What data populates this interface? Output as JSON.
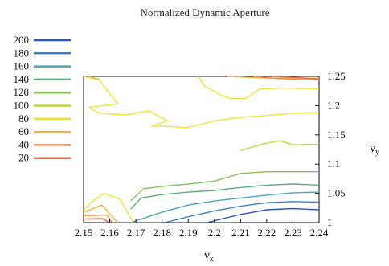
{
  "chart_data": {
    "type": "contour",
    "title": "Normalized Dynamic Aperture",
    "xlabel": "ν",
    "xlabel_sub": "x",
    "ylabel": "ν",
    "ylabel_sub": "y",
    "xlim": [
      2.15,
      2.24
    ],
    "ylim": [
      1.0,
      1.25
    ],
    "x_ticks": [
      "2.15",
      "2.16",
      "2.17",
      "2.18",
      "2.19",
      "2.2",
      "2.21",
      "2.22",
      "2.23",
      "2.24"
    ],
    "y_ticks": [
      "1",
      "1.05",
      "1.1",
      "1.15",
      "1.2",
      "1.25"
    ],
    "grid": false,
    "y_axis_side": "right",
    "legend_position": "top-left",
    "levels": [
      {
        "value": 200,
        "label": "200",
        "color": "#2c55c9"
      },
      {
        "value": 180,
        "label": "180",
        "color": "#3b82c4"
      },
      {
        "value": 160,
        "label": "160",
        "color": "#4aa6b7"
      },
      {
        "value": 140,
        "label": "140",
        "color": "#58b07c"
      },
      {
        "value": 120,
        "label": "120",
        "color": "#86c25a"
      },
      {
        "value": 100,
        "label": "100",
        "color": "#c4d43a"
      },
      {
        "value": 80,
        "label": "80",
        "color": "#f0e23a"
      },
      {
        "value": 60,
        "label": "60",
        "color": "#f5b23c"
      },
      {
        "value": 40,
        "label": "40",
        "color": "#f28a43"
      },
      {
        "value": 20,
        "label": "20",
        "color": "#ea6a4c"
      }
    ],
    "contours": [
      {
        "level": 200,
        "points": [
          [
            2.197,
            1.0
          ],
          [
            2.21,
            1.014
          ],
          [
            2.22,
            1.022
          ],
          [
            2.23,
            1.024
          ],
          [
            2.24,
            1.022
          ]
        ]
      },
      {
        "level": 180,
        "points": [
          [
            2.181,
            1.0
          ],
          [
            2.19,
            1.01
          ],
          [
            2.2,
            1.02
          ],
          [
            2.21,
            1.028
          ],
          [
            2.22,
            1.034
          ],
          [
            2.23,
            1.036
          ],
          [
            2.24,
            1.035
          ]
        ]
      },
      {
        "level": 160,
        "points": [
          [
            2.168,
            1.0
          ],
          [
            2.18,
            1.018
          ],
          [
            2.19,
            1.03
          ],
          [
            2.2,
            1.037
          ],
          [
            2.21,
            1.042
          ],
          [
            2.22,
            1.047
          ],
          [
            2.23,
            1.051
          ],
          [
            2.24,
            1.052
          ]
        ]
      },
      {
        "level": 140,
        "points": [
          [
            2.168,
            1.023
          ],
          [
            2.172,
            1.042
          ],
          [
            2.18,
            1.048
          ],
          [
            2.19,
            1.052
          ],
          [
            2.2,
            1.055
          ],
          [
            2.21,
            1.06
          ],
          [
            2.22,
            1.064
          ],
          [
            2.23,
            1.066
          ],
          [
            2.24,
            1.064
          ]
        ]
      },
      {
        "level": 120,
        "points": [
          [
            2.168,
            1.037
          ],
          [
            2.173,
            1.058
          ],
          [
            2.18,
            1.062
          ],
          [
            2.19,
            1.066
          ],
          [
            2.2,
            1.071
          ],
          [
            2.21,
            1.084
          ],
          [
            2.22,
            1.087
          ],
          [
            2.23,
            1.087
          ],
          [
            2.24,
            1.087
          ]
        ]
      },
      {
        "level": 100,
        "points": [
          [
            2.21,
            1.123
          ],
          [
            2.219,
            1.135
          ],
          [
            2.225,
            1.14
          ],
          [
            2.23,
            1.133
          ],
          [
            2.24,
            1.134
          ]
        ]
      },
      {
        "level": 80,
        "points": [
          [
            2.15,
            1.25
          ],
          [
            2.156,
            1.244
          ],
          [
            2.16,
            1.22
          ],
          [
            2.163,
            1.203
          ],
          [
            2.152,
            1.197
          ],
          [
            2.156,
            1.187
          ],
          [
            2.166,
            1.184
          ],
          [
            2.175,
            1.191
          ],
          [
            2.182,
            1.174
          ],
          [
            2.176,
            1.165
          ],
          [
            2.184,
            1.164
          ],
          [
            2.189,
            1.162
          ],
          [
            2.194,
            1.167
          ],
          [
            2.2,
            1.174
          ],
          [
            2.21,
            1.18
          ],
          [
            2.22,
            1.183
          ],
          [
            2.23,
            1.187
          ],
          [
            2.24,
            1.188
          ]
        ]
      },
      {
        "level": 80,
        "points": [
          [
            2.194,
            1.25
          ],
          [
            2.196,
            1.234
          ],
          [
            2.202,
            1.219
          ],
          [
            2.206,
            1.212
          ],
          [
            2.212,
            1.212
          ],
          [
            2.217,
            1.228
          ],
          [
            2.225,
            1.23
          ],
          [
            2.24,
            1.229
          ]
        ]
      },
      {
        "level": 80,
        "points": [
          [
            2.15,
            1.02
          ],
          [
            2.153,
            1.035
          ],
          [
            2.158,
            1.05
          ],
          [
            2.164,
            1.04
          ],
          [
            2.169,
            1.0
          ]
        ]
      },
      {
        "level": 60,
        "points": [
          [
            2.152,
            1.25
          ],
          [
            2.156,
            1.245
          ]
        ]
      },
      {
        "level": 60,
        "points": [
          [
            2.15,
            1.018
          ],
          [
            2.157,
            1.03
          ],
          [
            2.163,
            1.0
          ]
        ]
      },
      {
        "level": 60,
        "points": [
          [
            2.205,
            1.25
          ],
          [
            2.22,
            1.247
          ],
          [
            2.24,
            1.247
          ]
        ]
      },
      {
        "level": 40,
        "points": [
          [
            2.15,
            1.012
          ],
          [
            2.159,
            1.013
          ],
          [
            2.161,
            1.0
          ]
        ]
      },
      {
        "level": 40,
        "points": [
          [
            2.215,
            1.25
          ],
          [
            2.225,
            1.246
          ],
          [
            2.24,
            1.244
          ]
        ]
      },
      {
        "level": 20,
        "points": [
          [
            2.15,
            1.006
          ],
          [
            2.157,
            1.007
          ],
          [
            2.16,
            1.0
          ]
        ]
      },
      {
        "level": 20,
        "points": [
          [
            2.222,
            1.25
          ],
          [
            2.232,
            1.248
          ],
          [
            2.24,
            1.245
          ]
        ]
      }
    ]
  }
}
